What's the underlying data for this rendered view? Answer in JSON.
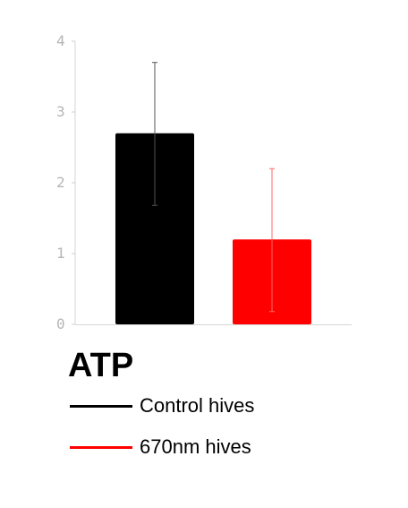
{
  "chart_data": {
    "type": "bar",
    "title": "ATP",
    "categories": [
      "Control hives",
      "670nm hives"
    ],
    "values": [
      2.7,
      1.2
    ],
    "error": [
      {
        "low": 1.68,
        "high": 3.7
      },
      {
        "low": 0.18,
        "high": 2.2
      }
    ],
    "colors": [
      "#000000",
      "#ff0000"
    ],
    "ylim": [
      0,
      4
    ],
    "yticks": [
      "0",
      "1",
      "2",
      "3",
      "4"
    ],
    "grid": false,
    "legend_position": "bottom"
  },
  "legend": [
    {
      "label": "Control hives",
      "color": "#000000"
    },
    {
      "label": "670nm hives",
      "color": "#ff0000"
    }
  ]
}
